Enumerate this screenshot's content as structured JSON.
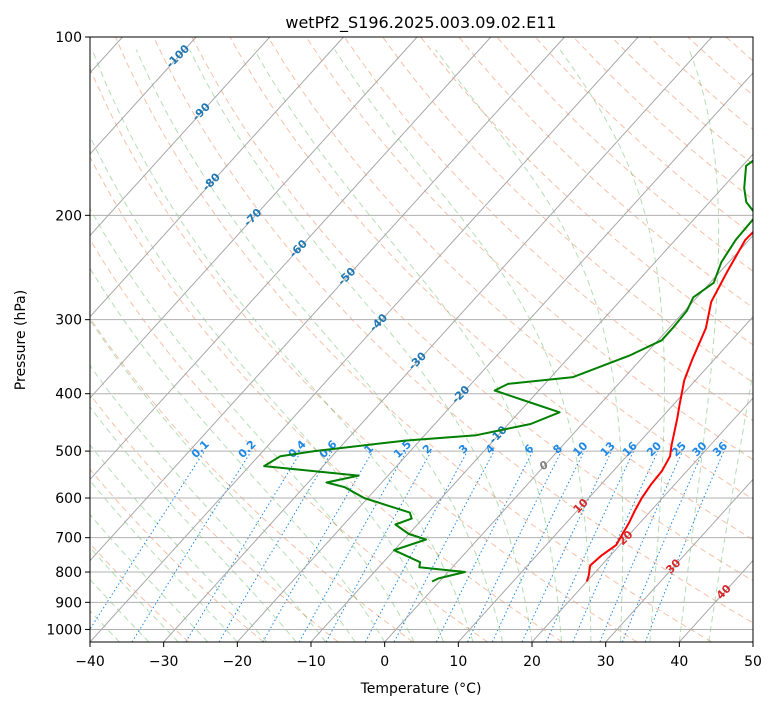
{
  "chart_data": {
    "type": "line",
    "title": "wetPf2_S196.2025.003.09.02.E11",
    "xlabel": "Temperature (°C)",
    "ylabel": "Pressure (hPa)",
    "xlim": [
      -40,
      50
    ],
    "ylim": [
      1050,
      100
    ],
    "y_scale": "log",
    "grid": true,
    "x_ticks": [
      "−40",
      "−30",
      "−20",
      "−10",
      "0",
      "10",
      "20",
      "30",
      "40",
      "50"
    ],
    "y_ticks": [
      "100",
      "200",
      "300",
      "400",
      "500",
      "600",
      "700",
      "800",
      "900",
      "1000"
    ],
    "colors": {
      "temperature": "#ff0000",
      "dewpoint": "#008000",
      "dry_adiabat": "#f4a582",
      "moist_adiabat": "#2ca02c",
      "mixing_ratio": "#1e88e5",
      "isotherm_label": "#1f77b4",
      "positive_isotherm_label": "#d62728",
      "zero_isotherm_label": "#808080"
    },
    "series": [
      {
        "name": "",
        "role": "temperature",
        "points": [
          [
            20.0,
            830
          ],
          [
            19.5,
            810
          ],
          [
            18.5,
            780
          ],
          [
            18.8,
            750
          ],
          [
            19.5,
            720
          ],
          [
            19.0,
            690
          ],
          [
            18.5,
            660
          ],
          [
            17.8,
            630
          ],
          [
            17.2,
            600
          ],
          [
            16.8,
            570
          ],
          [
            16.6,
            540
          ],
          [
            15.9,
            510
          ],
          [
            14.8,
            490
          ],
          [
            13.8,
            470
          ],
          [
            12.2,
            440
          ],
          [
            11.0,
            420
          ],
          [
            8.5,
            380
          ],
          [
            7.0,
            350
          ],
          [
            5.0,
            310
          ],
          [
            2.5,
            280
          ],
          [
            1.0,
            250
          ],
          [
            -0.5,
            220
          ],
          [
            -0.2,
            200
          ],
          [
            0.8,
            185
          ],
          [
            4.0,
            165
          ],
          [
            5.5,
            150
          ],
          [
            6.5,
            135
          ],
          [
            9.5,
            125
          ],
          [
            12.5,
            115
          ],
          [
            15.5,
            106
          ],
          [
            17.0,
            100
          ]
        ]
      },
      {
        "name": "",
        "role": "dewpoint",
        "points": [
          [
            -1.0,
            830
          ],
          [
            -0.5,
            820
          ],
          [
            2.3,
            800
          ],
          [
            -4.5,
            785
          ],
          [
            -5.0,
            770
          ],
          [
            -10.0,
            735
          ],
          [
            -7.0,
            705
          ],
          [
            -10.0,
            690
          ],
          [
            -13.0,
            665
          ],
          [
            -11.5,
            650
          ],
          [
            -12.5,
            635
          ],
          [
            -20.5,
            600
          ],
          [
            -24.5,
            575
          ],
          [
            -27.5,
            565
          ],
          [
            -24.0,
            550
          ],
          [
            -38.0,
            530
          ],
          [
            -37.0,
            510
          ],
          [
            -33.0,
            500
          ],
          [
            -22.0,
            480
          ],
          [
            -13.0,
            470
          ],
          [
            -7.0,
            450
          ],
          [
            -4.5,
            430
          ],
          [
            -11.0,
            410
          ],
          [
            -16.0,
            395
          ],
          [
            -15.0,
            385
          ],
          [
            -7.0,
            375
          ],
          [
            -2.0,
            345
          ],
          [
            0.5,
            325
          ],
          [
            0.5,
            310
          ],
          [
            0.3,
            290
          ],
          [
            -0.5,
            275
          ],
          [
            0.5,
            260
          ],
          [
            -1.0,
            240
          ],
          [
            -1.8,
            220
          ],
          [
            -2.0,
            200
          ],
          [
            -5.0,
            190
          ],
          [
            -7.0,
            180
          ],
          [
            -9.5,
            165
          ],
          [
            -8.5,
            155
          ],
          [
            -5.0,
            145
          ],
          [
            -2.5,
            130
          ],
          [
            0.5,
            115
          ],
          [
            1.5,
            100
          ]
        ]
      }
    ],
    "isotherm_labels": [
      "-100",
      "-90",
      "-80",
      "-70",
      "-60",
      "-50",
      "-40",
      "-30",
      "-20",
      "-10",
      "0",
      "10",
      "20",
      "30",
      "40"
    ],
    "mixing_ratio_labels": [
      "0.1",
      "0.2",
      "0.4",
      "0.6",
      "1",
      "1.5",
      "2",
      "3",
      "4",
      "6",
      "8",
      "10",
      "13",
      "16",
      "20",
      "25",
      "30",
      "36"
    ]
  }
}
